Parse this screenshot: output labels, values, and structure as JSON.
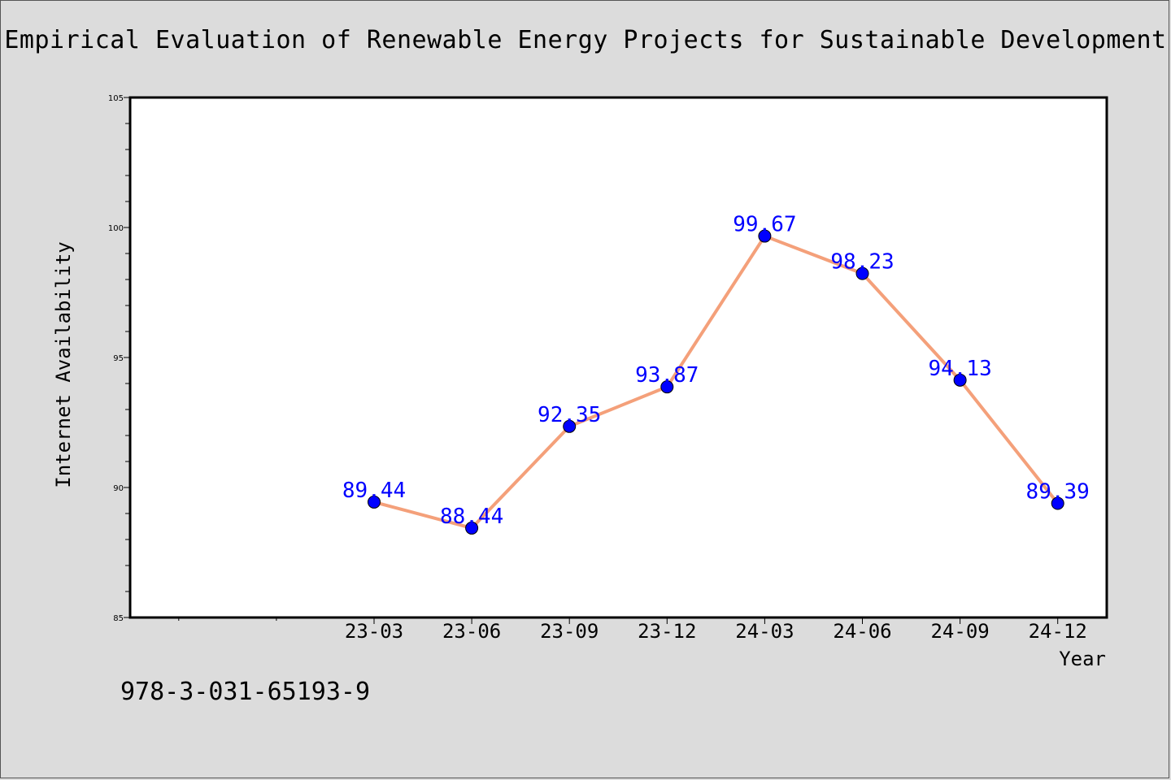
{
  "chart_data": {
    "type": "line",
    "title": "Empirical Evaluation of Renewable Energy Projects for Sustainable Development",
    "xlabel": "Year",
    "ylabel": "Internet Availability",
    "ylim": [
      85,
      105
    ],
    "yticks": [
      85,
      90,
      95,
      100,
      105
    ],
    "categories": [
      "23-03",
      "23-06",
      "23-09",
      "23-12",
      "24-03",
      "24-06",
      "24-09",
      "24-12"
    ],
    "series": [
      {
        "values": [
          89.44,
          88.44,
          92.35,
          93.87,
          99.67,
          98.23,
          94.13,
          89.39
        ],
        "labels": [
          "89.44",
          "88.44",
          "92.35",
          "93.87",
          "99.67",
          "98.23",
          "94.13",
          "89.39"
        ],
        "line_color": "#f4a07a",
        "marker_color": "#0000ff",
        "label_color": "#0000ff"
      }
    ],
    "grid": false,
    "legend": "none"
  },
  "footer": {
    "isbn": "978-3-031-65193-9"
  }
}
